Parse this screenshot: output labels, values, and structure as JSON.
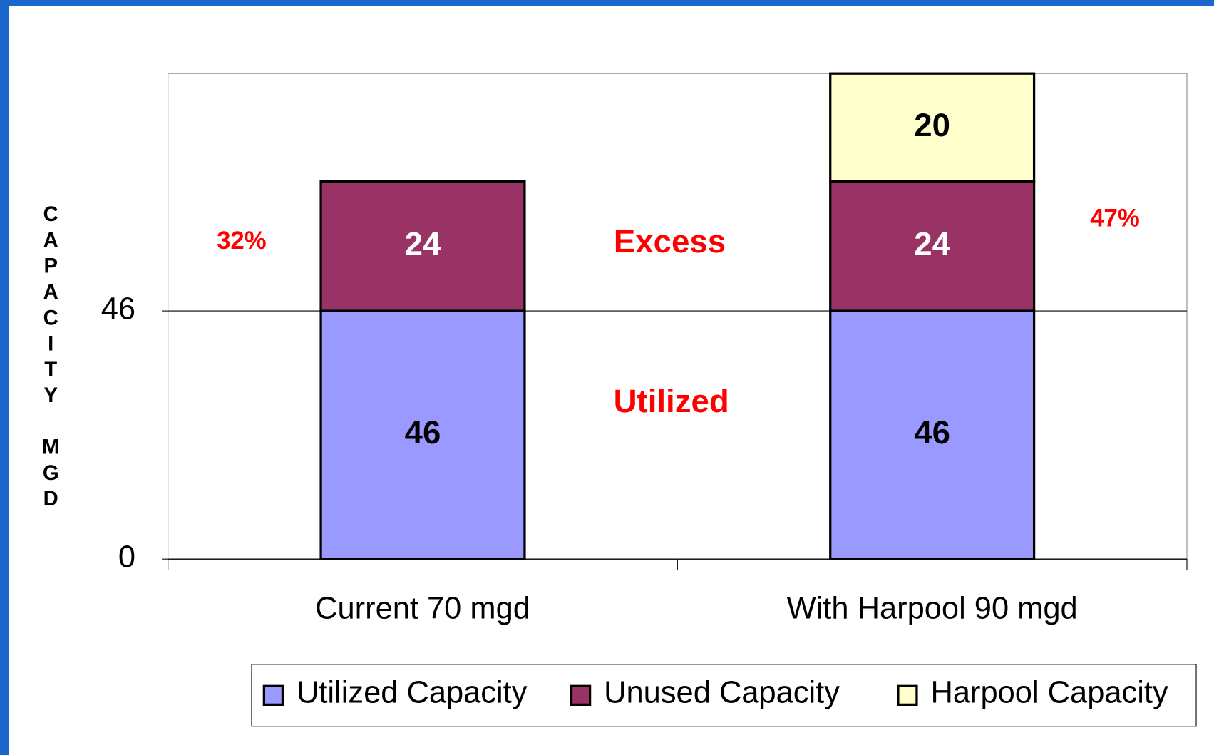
{
  "chart_data": {
    "type": "stacked_bar",
    "y_label": "CAPACITY MGD",
    "categories": [
      "Current 70 mgd",
      "With Harpool 90 mgd"
    ],
    "series": [
      {
        "name": "Utilized Capacity",
        "color": "#9999ff",
        "label_color": "#000000",
        "values": [
          46,
          46
        ]
      },
      {
        "name": "Unused Capacity",
        "color": "#993366",
        "label_color": "#ffffff",
        "values": [
          24,
          24
        ]
      },
      {
        "name": "Harpool Capacity",
        "color": "#ffffcc",
        "label_color": "#000000",
        "values": [
          null,
          20
        ]
      }
    ],
    "ylim": [
      0,
      90
    ],
    "yticks": [
      0,
      46
    ],
    "grid": true,
    "annotations": [
      "32%",
      "47%",
      "Excess",
      "Utilized"
    ],
    "annotation_color": "#ff0000",
    "legend": "bottom"
  }
}
